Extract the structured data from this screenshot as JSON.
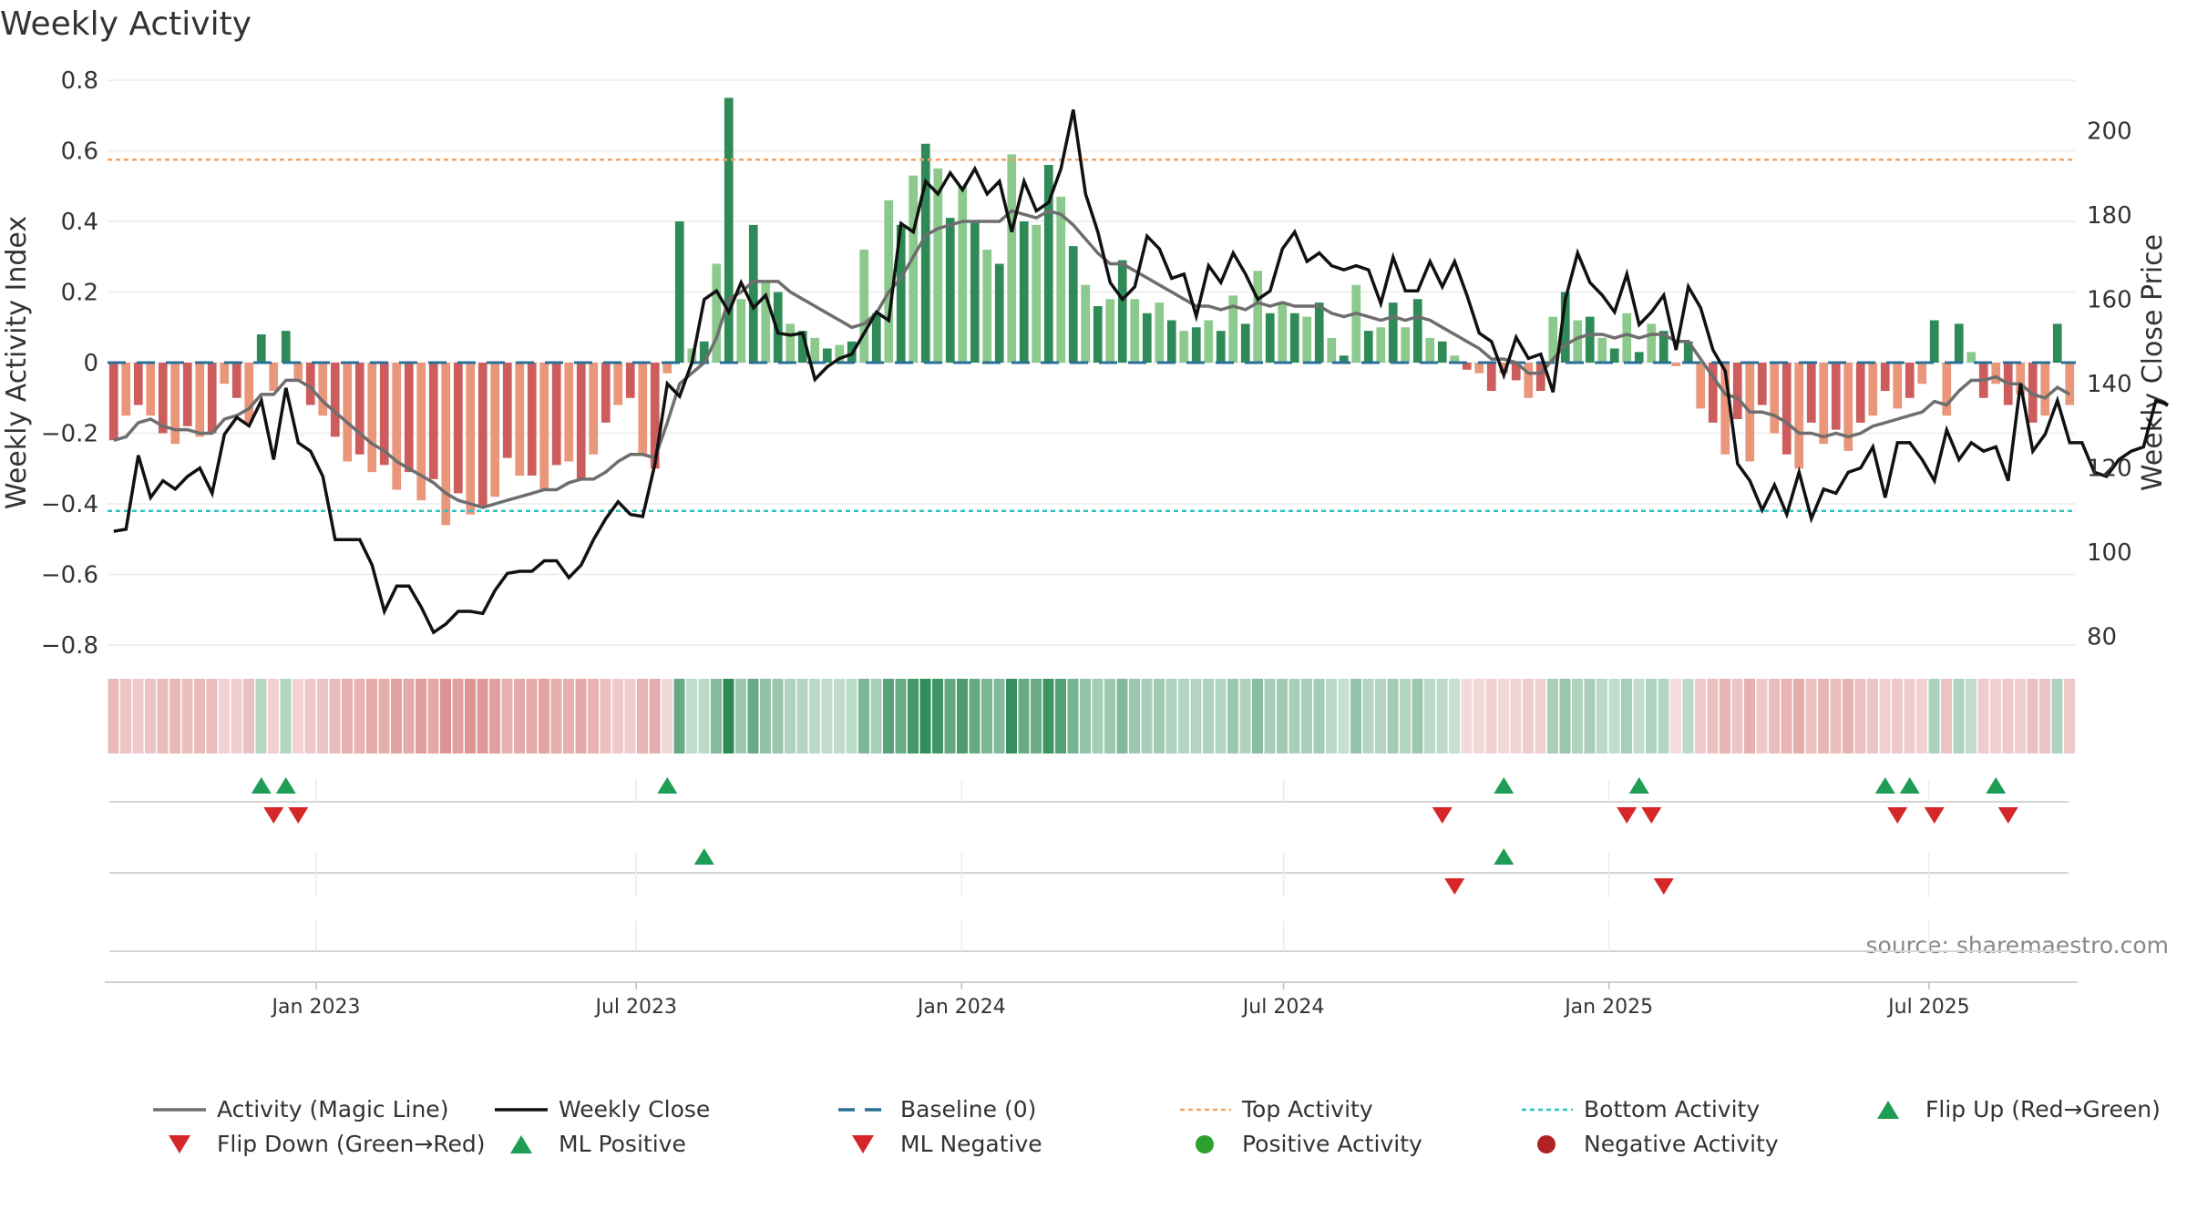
{
  "chart_data": {
    "type": "bar",
    "title": "Weekly Activity",
    "ylabel": "Weekly Activity Index",
    "ylabel_right": "Weekly Close Price",
    "source": "source: sharemaestro.com",
    "ylim": [
      -0.8,
      0.8
    ],
    "ylim_right": [
      78,
      212
    ],
    "yticks": [
      "0.8",
      "0.6",
      "0.4",
      "0.2",
      "0",
      "−0.2",
      "−0.4",
      "−0.6",
      "−0.8"
    ],
    "yticks_right": [
      "200",
      "180",
      "160",
      "140",
      "120",
      "100",
      "80"
    ],
    "x_range": [
      "2022-09-05",
      "2025-09-22"
    ],
    "x_ticks": [
      {
        "label": "Jan 2023",
        "date": "2023-01-01"
      },
      {
        "label": "Jul 2023",
        "date": "2023-07-01"
      },
      {
        "label": "Jan 2024",
        "date": "2024-01-01"
      },
      {
        "label": "Jul 2024",
        "date": "2024-07-01"
      },
      {
        "label": "Jan 2025",
        "date": "2025-01-01"
      },
      {
        "label": "Jul 2025",
        "date": "2025-07-01"
      }
    ],
    "top_activity": 0.575,
    "bottom_activity": -0.42,
    "baseline": 0,
    "weeks": 160,
    "activity": [
      -0.22,
      -0.15,
      -0.12,
      -0.15,
      -0.2,
      -0.23,
      -0.18,
      -0.21,
      -0.2,
      -0.06,
      -0.1,
      -0.17,
      0.08,
      -0.08,
      0.09,
      -0.05,
      -0.12,
      -0.15,
      -0.21,
      -0.28,
      -0.26,
      -0.31,
      -0.29,
      -0.36,
      -0.31,
      -0.39,
      -0.33,
      -0.46,
      -0.37,
      -0.43,
      -0.41,
      -0.38,
      -0.27,
      -0.32,
      -0.32,
      -0.36,
      -0.29,
      -0.28,
      -0.33,
      -0.26,
      -0.17,
      -0.12,
      -0.1,
      -0.26,
      -0.3,
      -0.03,
      0.4,
      0.04,
      0.06,
      0.28,
      0.75,
      0.18,
      0.39,
      0.23,
      0.2,
      0.11,
      0.09,
      0.07,
      0.04,
      0.05,
      0.06,
      0.32,
      0.14,
      0.46,
      0.39,
      0.53,
      0.62,
      0.55,
      0.41,
      0.5,
      0.4,
      0.32,
      0.28,
      0.59,
      0.4,
      0.39,
      0.56,
      0.47,
      0.33,
      0.22,
      0.16,
      0.18,
      0.29,
      0.18,
      0.14,
      0.17,
      0.12,
      0.09,
      0.1,
      0.12,
      0.09,
      0.19,
      0.11,
      0.26,
      0.14,
      0.17,
      0.14,
      0.13,
      0.17,
      0.07,
      0.02,
      0.22,
      0.09,
      0.1,
      0.17,
      0.1,
      0.18,
      0.07,
      0.06,
      0.02,
      -0.02,
      -0.03,
      -0.08,
      -0.03,
      -0.05,
      -0.1,
      -0.08,
      0.13,
      0.2,
      0.12,
      0.13,
      0.07,
      0.04,
      0.14,
      0.03,
      0.11,
      0.09,
      -0.01,
      0.06,
      -0.13,
      -0.17,
      -0.26,
      -0.16,
      -0.28,
      -0.12,
      -0.2,
      -0.26,
      -0.3,
      -0.17,
      -0.23,
      -0.19,
      -0.25,
      -0.17,
      -0.15,
      -0.08,
      -0.13,
      -0.1,
      -0.06,
      0.12,
      -0.15,
      0.11,
      0.03,
      -0.1,
      -0.06,
      -0.12,
      -0.09,
      -0.17,
      -0.15,
      0.11,
      -0.12
    ],
    "magic_line": [
      -0.22,
      -0.21,
      -0.17,
      -0.16,
      -0.18,
      -0.19,
      -0.19,
      -0.2,
      -0.2,
      -0.16,
      -0.15,
      -0.13,
      -0.09,
      -0.09,
      -0.05,
      -0.05,
      -0.07,
      -0.11,
      -0.14,
      -0.17,
      -0.2,
      -0.23,
      -0.25,
      -0.28,
      -0.3,
      -0.32,
      -0.34,
      -0.37,
      -0.39,
      -0.4,
      -0.41,
      -0.4,
      -0.39,
      -0.38,
      -0.37,
      -0.36,
      -0.36,
      -0.34,
      -0.33,
      -0.33,
      -0.31,
      -0.28,
      -0.26,
      -0.26,
      -0.27,
      -0.17,
      -0.06,
      -0.03,
      0,
      0.07,
      0.18,
      0.2,
      0.23,
      0.23,
      0.23,
      0.2,
      0.18,
      0.16,
      0.14,
      0.12,
      0.1,
      0.11,
      0.14,
      0.2,
      0.24,
      0.3,
      0.36,
      0.38,
      0.39,
      0.4,
      0.4,
      0.4,
      0.4,
      0.43,
      0.42,
      0.41,
      0.43,
      0.42,
      0.39,
      0.35,
      0.31,
      0.28,
      0.28,
      0.26,
      0.24,
      0.22,
      0.2,
      0.18,
      0.16,
      0.16,
      0.15,
      0.16,
      0.15,
      0.17,
      0.16,
      0.17,
      0.16,
      0.16,
      0.16,
      0.14,
      0.13,
      0.14,
      0.13,
      0.12,
      0.13,
      0.12,
      0.13,
      0.12,
      0.1,
      0.08,
      0.06,
      0.04,
      0.01,
      0.01,
      0,
      -0.03,
      -0.03,
      0.01,
      0.05,
      0.07,
      0.08,
      0.08,
      0.07,
      0.08,
      0.07,
      0.08,
      0.08,
      0.06,
      0.06,
      0.01,
      -0.04,
      -0.09,
      -0.1,
      -0.14,
      -0.14,
      -0.15,
      -0.17,
      -0.2,
      -0.2,
      -0.21,
      -0.2,
      -0.21,
      -0.2,
      -0.18,
      -0.17,
      -0.16,
      -0.15,
      -0.14,
      -0.11,
      -0.12,
      -0.08,
      -0.05,
      -0.05,
      -0.04,
      -0.06,
      -0.06,
      -0.09,
      -0.1,
      -0.07,
      -0.09
    ],
    "weekly_close": [
      105,
      105.5,
      123,
      113,
      117,
      115,
      118,
      120,
      114,
      128,
      132,
      130,
      136,
      122,
      139,
      126,
      124,
      118,
      103,
      103,
      103,
      97,
      86,
      92,
      92,
      87,
      81,
      83,
      86,
      86,
      85.5,
      91,
      95,
      95.5,
      95.5,
      98,
      98,
      94,
      97,
      103,
      108,
      112,
      109,
      108.5,
      121,
      140,
      137,
      145,
      160,
      162,
      157,
      164,
      158,
      161,
      152,
      151.5,
      152,
      141,
      144,
      146,
      147,
      152,
      157,
      155,
      178,
      176,
      188,
      185,
      190,
      186,
      191,
      185,
      188,
      176,
      188,
      181,
      183,
      191,
      205,
      185,
      176,
      164,
      160,
      163,
      175,
      172,
      165,
      166,
      156,
      168,
      164,
      171,
      166,
      160,
      162,
      172,
      176,
      169,
      171,
      168,
      167,
      168,
      167,
      159,
      170,
      162,
      162,
      169,
      163,
      169,
      161,
      152,
      150,
      142,
      151,
      146,
      147,
      138,
      160,
      171,
      164,
      161,
      157,
      166,
      154,
      157,
      161,
      148,
      163,
      158,
      148,
      143,
      121,
      117,
      110,
      116,
      109,
      119,
      108,
      115,
      114,
      119,
      120,
      125,
      113,
      126,
      126,
      122,
      117,
      129,
      122,
      126,
      124,
      125,
      117,
      140,
      124,
      128,
      136,
      126,
      126,
      119,
      118,
      122,
      124,
      125,
      136,
      135
    ]
  },
  "heatstrip": {
    "note": "per-week shade level 0..1 encoded by activity magnitude"
  },
  "signals": {
    "flip_up": [
      12,
      14,
      45,
      113,
      124,
      144,
      146,
      153
    ],
    "flip_down": [
      13,
      15,
      108,
      123,
      125,
      145,
      148,
      154
    ],
    "ml_positive": [
      48,
      113
    ],
    "ml_negative": [
      109,
      126
    ]
  },
  "legend": [
    {
      "label": "Activity (Magic Line)",
      "symbol": "line",
      "color": "#6e6e6e"
    },
    {
      "label": "Weekly Close",
      "symbol": "line",
      "color": "#111111"
    },
    {
      "label": "Baseline (0)",
      "symbol": "dash",
      "color": "#2a6f97"
    },
    {
      "label": "Top Activity",
      "symbol": "dot-line",
      "color": "#f4a261"
    },
    {
      "label": "Bottom Activity",
      "symbol": "dot-line",
      "color": "#2ec4c4"
    },
    {
      "label": "Flip Up (Red→Green)",
      "symbol": "triangle-up",
      "color": "#1f9d55"
    },
    {
      "label": "Flip Down (Green→Red)",
      "symbol": "triangle-down",
      "color": "#d62728"
    },
    {
      "label": "ML Positive",
      "symbol": "triangle-up",
      "color": "#1f9d55"
    },
    {
      "label": "ML Negative",
      "symbol": "triangle-down",
      "color": "#d62728"
    },
    {
      "label": "Positive Activity",
      "symbol": "circle",
      "color": "#2ca02c"
    },
    {
      "label": "Negative Activity",
      "symbol": "circle",
      "color": "#b22222"
    }
  ],
  "colors": {
    "pos_strong": "#2e8b57",
    "pos_light": "#8cc98c",
    "neg_strong": "#cd5c5c",
    "neg_light": "#e9967a",
    "grid": "#ececec"
  }
}
